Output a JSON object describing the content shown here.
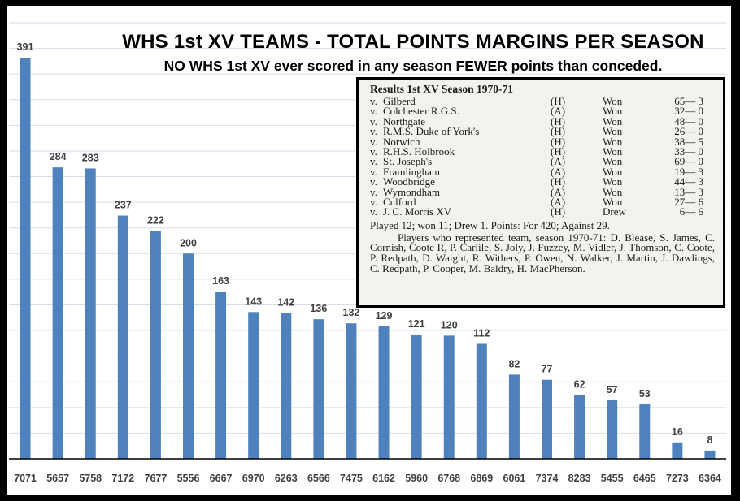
{
  "chart_data": {
    "type": "bar",
    "title": "WHS 1st XV TEAMS - TOTAL POINTS MARGINS PER SEASON",
    "subtitle": "NO WHS 1st XV ever scored in any season FEWER points than conceded.",
    "xlabel": "",
    "ylabel": "",
    "categories": [
      "7071",
      "5657",
      "5758",
      "7172",
      "7677",
      "5556",
      "6667",
      "6970",
      "6263",
      "6566",
      "7475",
      "6162",
      "5960",
      "6768",
      "6869",
      "6061",
      "7374",
      "8283",
      "5455",
      "6465",
      "7273",
      "6364"
    ],
    "values": [
      391,
      284,
      283,
      237,
      222,
      200,
      163,
      143,
      142,
      136,
      132,
      129,
      121,
      120,
      112,
      82,
      77,
      62,
      57,
      53,
      16,
      8
    ],
    "ylim": [
      0,
      425
    ],
    "ytick_step": 25,
    "yaxis_labels_visible": false,
    "grid": true,
    "data_labels": true,
    "bar_color": "#4f81bd",
    "grid_color": "#d6dde8",
    "label_color": "#404040"
  },
  "inset": {
    "title": "Results 1st XV Season 1970-71",
    "results": [
      {
        "v": "v.",
        "opponent": "Gilberd",
        "venue": "(H)",
        "outcome": "Won",
        "score": "65— 3"
      },
      {
        "v": "v.",
        "opponent": "Colchester R.G.S.",
        "venue": "(A)",
        "outcome": "Won",
        "score": "32— 0"
      },
      {
        "v": "v.",
        "opponent": "Northgate",
        "venue": "(H)",
        "outcome": "Won",
        "score": "48— 0"
      },
      {
        "v": "v.",
        "opponent": "R.M.S. Duke of York's",
        "venue": "(H)",
        "outcome": "Won",
        "score": "26— 0"
      },
      {
        "v": "v.",
        "opponent": "Norwich",
        "venue": "(H)",
        "outcome": "Won",
        "score": "38— 5"
      },
      {
        "v": "v.",
        "opponent": "R.H.S. Holbrook",
        "venue": "(H)",
        "outcome": "Won",
        "score": "33— 0"
      },
      {
        "v": "v.",
        "opponent": "St. Joseph's",
        "venue": "(A)",
        "outcome": "Won",
        "score": "69— 0"
      },
      {
        "v": "v.",
        "opponent": "Framlingham",
        "venue": "(A)",
        "outcome": "Won",
        "score": "19— 3"
      },
      {
        "v": "v.",
        "opponent": "Woodbridge",
        "venue": "(H)",
        "outcome": "Won",
        "score": "44— 3"
      },
      {
        "v": "v.",
        "opponent": "Wymondham",
        "venue": "(A)",
        "outcome": "Won",
        "score": "13— 3"
      },
      {
        "v": "v.",
        "opponent": "Culford",
        "venue": "(A)",
        "outcome": "Won",
        "score": "27— 6"
      },
      {
        "v": "v.",
        "opponent": "J. C. Morris XV",
        "venue": "(H)",
        "outcome": "Drew",
        "score": "6— 6"
      }
    ],
    "summary": "Played 12; won 11; Drew 1. Points: For 420; Against 29.",
    "players": "Players who represented team, season 1970-71: D. Blease, S. James, C. Cornish, Coote R, P. Carlile, S. Joly, J. Fuzzey, M. Vidler, J. Thomson, C. Coote, P. Redpath, D. Waight, R. Withers, P. Owen, N. Walker, J. Martin, J. Dawlings, C. Redpath, P. Cooper, M. Baldry, H. MacPherson."
  }
}
